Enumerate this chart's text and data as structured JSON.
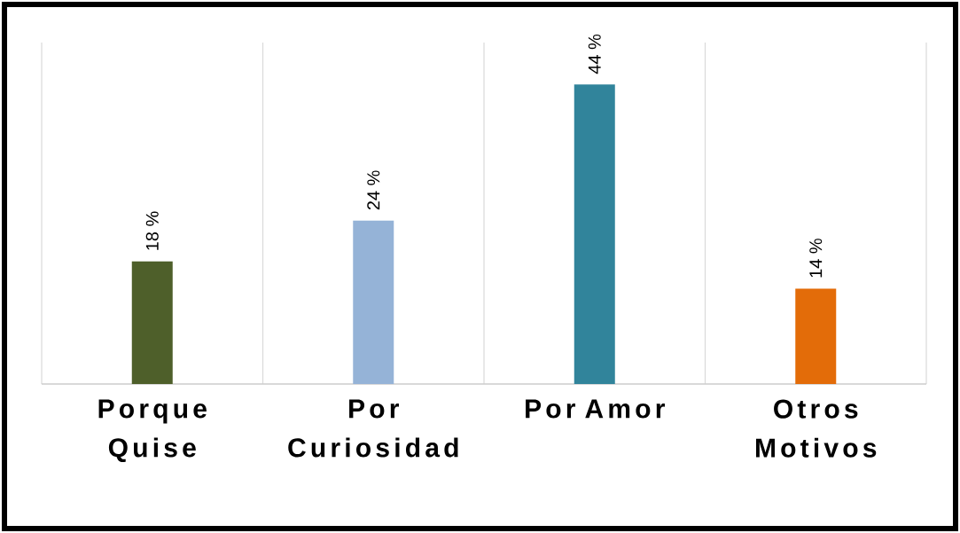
{
  "chart_data": {
    "type": "bar",
    "categories": [
      "Porque Quise",
      "Por Curiosidad",
      "Por Amor",
      "Otros Motivos"
    ],
    "values": [
      18,
      24,
      44,
      14
    ],
    "colors": [
      "#4e5f2a",
      "#95b3d7",
      "#31849b",
      "#e36c09"
    ],
    "value_labels": [
      "18 %",
      "24 %",
      "44 %",
      "14 %"
    ],
    "grid": "x"
  }
}
